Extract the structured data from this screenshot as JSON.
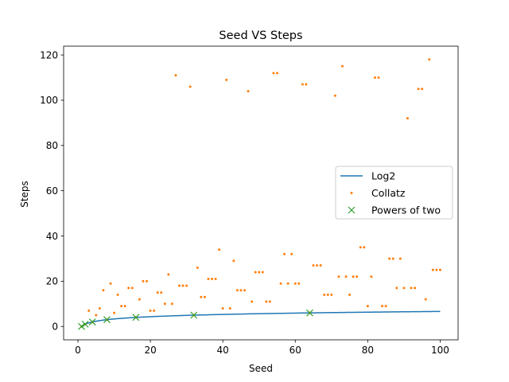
{
  "chart_data": {
    "type": "scatter",
    "title": "Seed VS Steps",
    "xlabel": "Seed",
    "ylabel": "Steps",
    "xlim": [
      -3.95,
      104.95
    ],
    "ylim": [
      -5.9,
      123.9
    ],
    "xticks": [
      0,
      20,
      40,
      60,
      80,
      100
    ],
    "yticks": [
      0,
      20,
      40,
      60,
      80,
      100,
      120
    ],
    "grid": false,
    "legend_position": "center-right",
    "series": [
      {
        "name": "Log2",
        "type": "line",
        "color": "#1f77b4",
        "function": "log2",
        "x_range": [
          1,
          100
        ]
      },
      {
        "name": "Collatz",
        "type": "scatter",
        "marker": "point",
        "color": "#ff7f0e",
        "x": [
          1,
          2,
          3,
          4,
          5,
          6,
          7,
          8,
          9,
          10,
          11,
          12,
          13,
          14,
          15,
          16,
          17,
          18,
          19,
          20,
          21,
          22,
          23,
          24,
          25,
          26,
          27,
          28,
          29,
          30,
          31,
          32,
          33,
          34,
          35,
          36,
          37,
          38,
          39,
          40,
          41,
          42,
          43,
          44,
          45,
          46,
          47,
          48,
          49,
          50,
          51,
          52,
          53,
          54,
          55,
          56,
          57,
          58,
          59,
          60,
          61,
          62,
          63,
          64,
          65,
          66,
          67,
          68,
          69,
          70,
          71,
          72,
          73,
          74,
          75,
          76,
          77,
          78,
          79,
          80,
          81,
          82,
          83,
          84,
          85,
          86,
          87,
          88,
          89,
          90,
          91,
          92,
          93,
          94,
          95,
          96,
          97,
          98,
          99,
          100
        ],
        "y": [
          0,
          1,
          7,
          2,
          5,
          8,
          16,
          3,
          19,
          6,
          14,
          9,
          9,
          17,
          17,
          4,
          12,
          20,
          20,
          7,
          7,
          15,
          15,
          10,
          23,
          10,
          111,
          18,
          18,
          18,
          106,
          5,
          26,
          13,
          13,
          21,
          21,
          21,
          34,
          8,
          109,
          8,
          29,
          16,
          16,
          16,
          104,
          11,
          24,
          24,
          24,
          11,
          11,
          112,
          112,
          19,
          32,
          19,
          32,
          19,
          19,
          107,
          107,
          6,
          27,
          27,
          27,
          14,
          14,
          14,
          102,
          22,
          115,
          22,
          14,
          22,
          22,
          35,
          35,
          9,
          22,
          110,
          110,
          9,
          9,
          30,
          30,
          17,
          30,
          17,
          92,
          17,
          17,
          105,
          105,
          12,
          118,
          25,
          25,
          25
        ]
      },
      {
        "name": "Powers of two",
        "type": "scatter",
        "marker": "x",
        "color": "#2ca02c",
        "x": [
          1,
          2,
          4,
          8,
          16,
          32,
          64
        ],
        "y": [
          0,
          1,
          2,
          3,
          4,
          5,
          6
        ]
      }
    ]
  }
}
